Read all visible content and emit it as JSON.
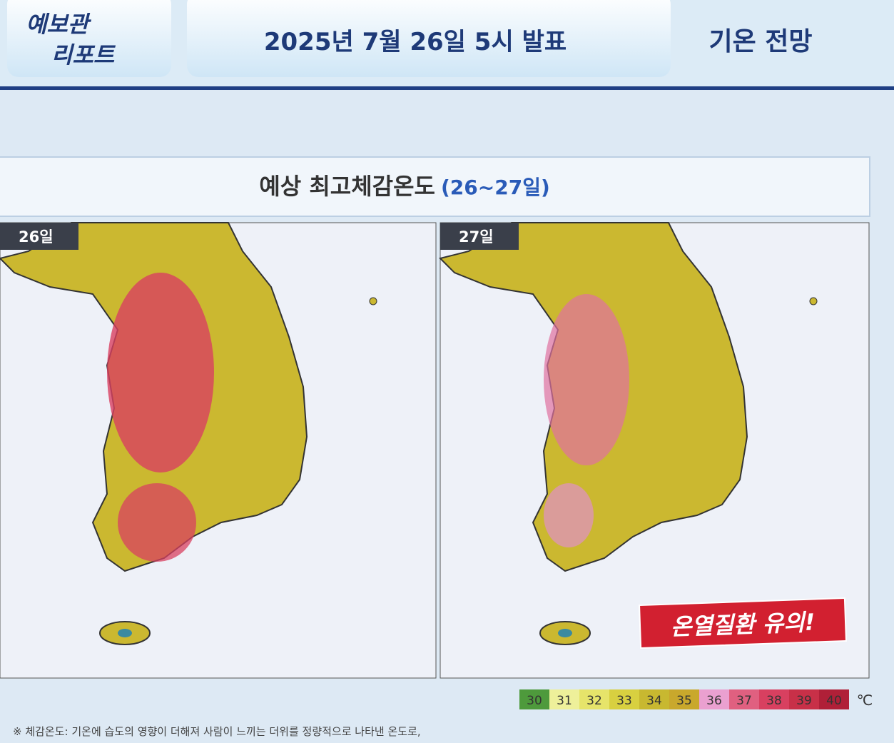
{
  "header": {
    "logo": [
      "예보관",
      "리포트"
    ],
    "title": "2025년 7월 26일 5시 발표",
    "section": "기온 전망"
  },
  "panel": {
    "title": "예상 최고체감온도",
    "period": "(26~27일)"
  },
  "maps": [
    {
      "label": "26일"
    },
    {
      "label": "27일"
    }
  ],
  "warning": "온열질환 유의!",
  "legend": {
    "items": [
      {
        "value": 30,
        "color": "#4e9a3c"
      },
      {
        "value": 31,
        "color": "#eef09a"
      },
      {
        "value": 32,
        "color": "#e6e46a"
      },
      {
        "value": 33,
        "color": "#d8d040"
      },
      {
        "value": 34,
        "color": "#c8b830"
      },
      {
        "value": 35,
        "color": "#c9a82c"
      },
      {
        "value": 36,
        "color": "#eaa0d0"
      },
      {
        "value": 37,
        "color": "#e06080"
      },
      {
        "value": 38,
        "color": "#d84060"
      },
      {
        "value": 39,
        "color": "#c83048"
      },
      {
        "value": 40,
        "color": "#b02038"
      }
    ],
    "unit": "℃"
  },
  "footnote": "※ 체감온도: 기온에 습도의 영향이 더해져 사람이 느끼는 더위를 정량적으로 나타낸 온도로,"
}
